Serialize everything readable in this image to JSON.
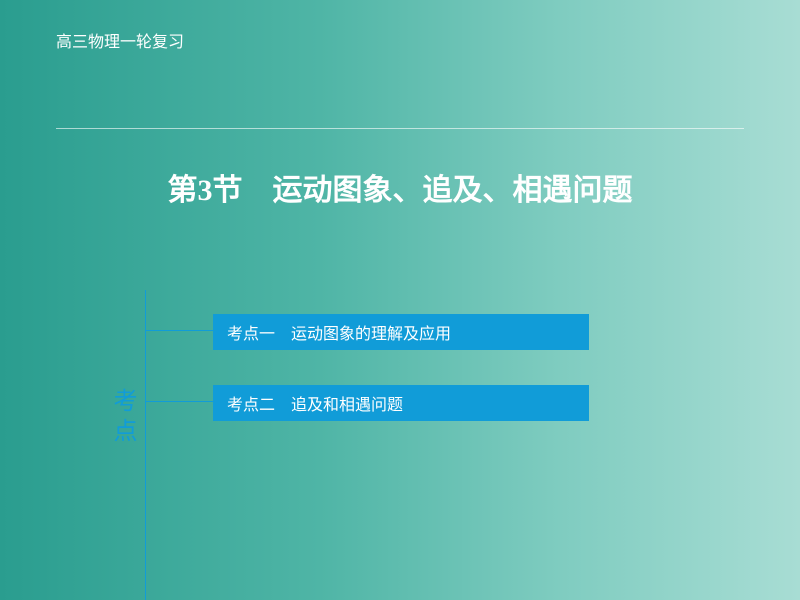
{
  "header": {
    "course_label": "高三物理一轮复习"
  },
  "title": {
    "section_prefix": "第",
    "section_number": "3",
    "section_suffix": "节",
    "title_text": "运动图象、追及、相遇问题"
  },
  "sidebar": {
    "label": "考点"
  },
  "topics": [
    {
      "label": "考点一　运动图象的理解及应用"
    },
    {
      "label": "考点二　追及和相遇问题"
    }
  ],
  "styling": {
    "background_gradient_start": "#2a9d8f",
    "background_gradient_end": "#a8ddd4",
    "accent_color": "#119cd8",
    "text_color": "#ffffff",
    "header_fontsize": 16,
    "title_fontsize": 30,
    "sidebar_fontsize": 24,
    "topic_fontsize": 16,
    "topic_box_width": 376,
    "topic_box_height": 36
  }
}
